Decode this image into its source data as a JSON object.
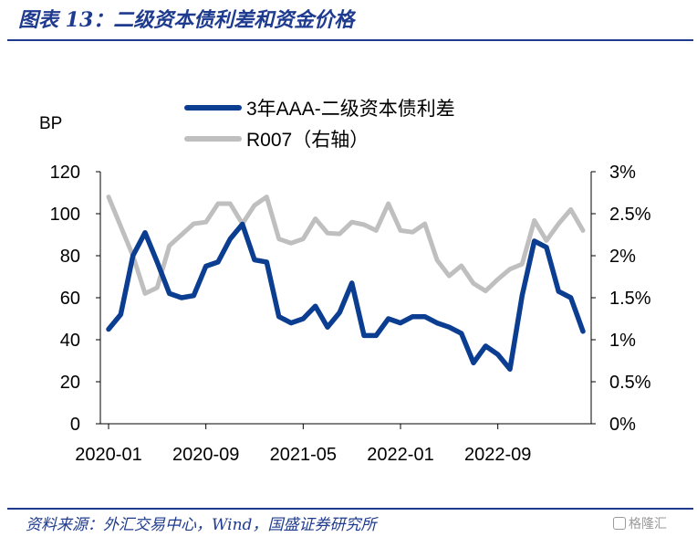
{
  "figure": {
    "title": "图表 13：二级资本债利差和资金价格",
    "source": "资料来源：外汇交易中心，Wind，国盛证券研究所",
    "watermark": "格隆汇"
  },
  "chart_data": {
    "type": "line",
    "title": "",
    "ylabel_left": "BP",
    "ylim_left": [
      0,
      120
    ],
    "yticks_left": [
      "0",
      "20",
      "40",
      "60",
      "80",
      "100",
      "120"
    ],
    "ylim_right": [
      0,
      3
    ],
    "yticks_right": [
      "0%",
      "0.5%",
      "1%",
      "1.5%",
      "2%",
      "2.5%",
      "3%"
    ],
    "x_tick_labels": [
      "2020-01",
      "2020-09",
      "2021-05",
      "2022-01",
      "2022-09"
    ],
    "x": [
      "2020-01",
      "2020-02",
      "2020-03",
      "2020-04",
      "2020-05",
      "2020-06",
      "2020-07",
      "2020-08",
      "2020-09",
      "2020-10",
      "2020-11",
      "2020-12",
      "2021-01",
      "2021-02",
      "2021-03",
      "2021-04",
      "2021-05",
      "2021-06",
      "2021-07",
      "2021-08",
      "2021-09",
      "2021-10",
      "2021-11",
      "2021-12",
      "2022-01",
      "2022-02",
      "2022-03",
      "2022-04",
      "2022-05",
      "2022-06",
      "2022-07",
      "2022-08",
      "2022-09",
      "2022-10",
      "2022-11",
      "2022-12",
      "2023-01",
      "2023-02",
      "2023-03",
      "2023-04"
    ],
    "legend_position": "top-center",
    "series": [
      {
        "name": "3年AAA-二级资本债利差",
        "axis": "left",
        "color": "#0b3d91",
        "values": [
          45,
          52,
          80,
          91,
          77,
          62,
          60,
          61,
          75,
          77,
          88,
          95,
          78,
          77,
          51,
          48,
          50,
          56,
          46,
          53,
          67,
          42,
          42,
          50,
          48,
          51,
          51,
          48,
          46,
          43,
          29,
          37,
          33,
          26,
          61,
          87,
          84,
          63,
          60,
          44
        ]
      },
      {
        "name": "R007（右轴）",
        "axis": "right",
        "color": "#bfbfbf",
        "values": [
          2.7,
          2.35,
          2.0,
          1.55,
          1.62,
          2.12,
          2.25,
          2.38,
          2.4,
          2.62,
          2.62,
          2.38,
          2.6,
          2.7,
          2.2,
          2.15,
          2.2,
          2.44,
          2.27,
          2.26,
          2.4,
          2.37,
          2.3,
          2.62,
          2.3,
          2.28,
          2.38,
          1.95,
          1.76,
          1.88,
          1.67,
          1.58,
          1.72,
          1.84,
          1.9,
          2.42,
          2.18,
          2.38,
          2.55,
          2.3
        ]
      }
    ]
  }
}
